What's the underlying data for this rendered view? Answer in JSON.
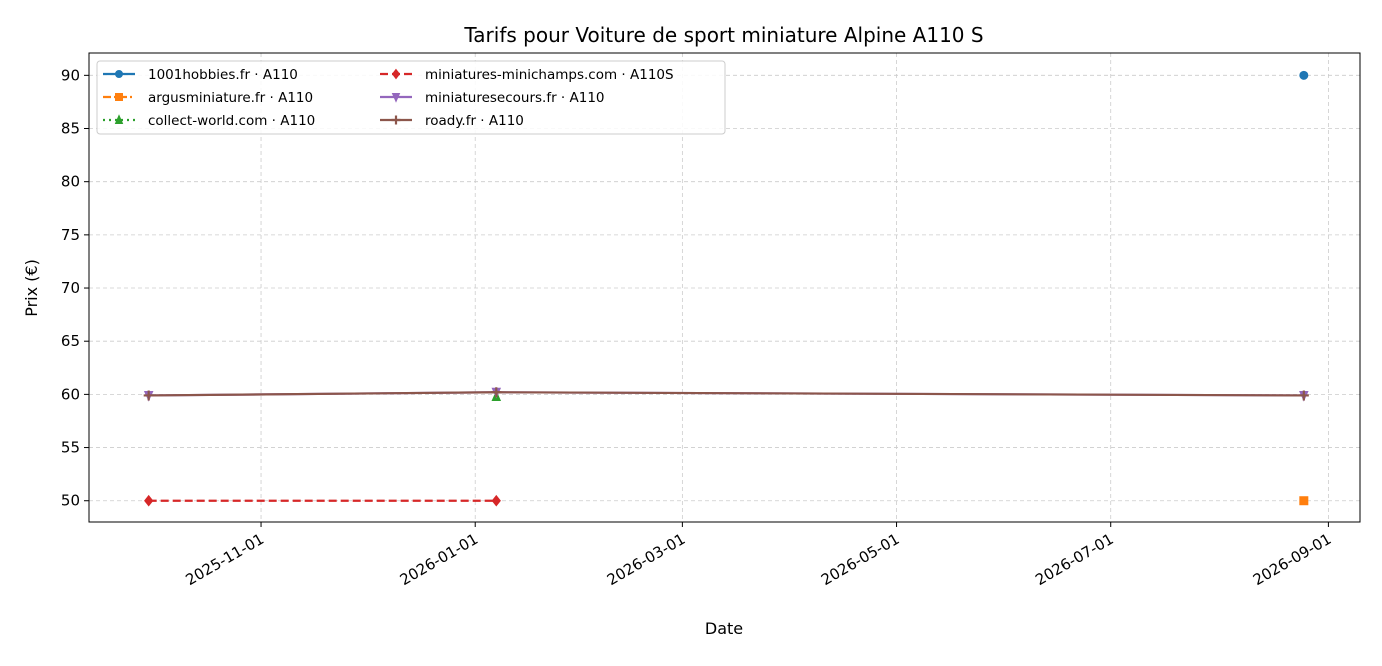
{
  "chart_data": {
    "type": "line",
    "title": "Tarifs pour Voiture de sport miniature Alpine A110 S",
    "x_label": "Date",
    "y_label": "Prix (€)",
    "x": [
      "2025-09-30",
      "2026-01-07",
      "2026-08-25"
    ],
    "xlim": [
      "2025-09-13",
      "2026-09-10"
    ],
    "xticks": [
      "2025-11-01",
      "2026-01-01",
      "2026-03-01",
      "2026-05-01",
      "2026-07-01",
      "2026-09-01"
    ],
    "ylim": [
      48.0,
      92.1
    ],
    "yticks": [
      50,
      55,
      60,
      65,
      70,
      75,
      80,
      85,
      90
    ],
    "grid": true,
    "legend": "upper left",
    "series": [
      {
        "name": "1001hobbies.fr · A110",
        "color": "#1f77b4",
        "linestyle": "solid",
        "marker": "circle",
        "values": [
          null,
          null,
          90
        ]
      },
      {
        "name": "argusminiature.fr · A110",
        "color": "#ff7f0e",
        "linestyle": "dashdot",
        "marker": "square",
        "values": [
          null,
          null,
          50
        ]
      },
      {
        "name": "collect-world.com · A110",
        "color": "#2ca02c",
        "linestyle": "dotted",
        "marker": "triangle-up",
        "values": [
          null,
          59.8,
          null
        ]
      },
      {
        "name": "miniatures-minichamps.com · A110S",
        "color": "#d62728",
        "linestyle": "dashed",
        "marker": "diamond",
        "values": [
          50,
          50,
          null
        ]
      },
      {
        "name": "miniaturesecours.fr · A110",
        "color": "#9467bd",
        "linestyle": "solid",
        "marker": "triangle-down",
        "values": [
          59.9,
          60.2,
          59.9
        ]
      },
      {
        "name": "roady.fr · A110",
        "color": "#8c564b",
        "linestyle": "solid",
        "marker": "plus",
        "values": [
          59.9,
          60.2,
          59.9
        ]
      }
    ]
  }
}
